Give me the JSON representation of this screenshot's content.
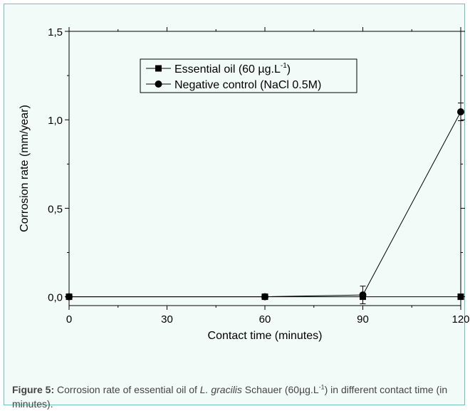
{
  "chart_data": {
    "type": "line",
    "xlabel": "Contact time (minutes)",
    "ylabel": "Corrosion rate (mm/year)",
    "x_ticks": [
      "0",
      "30",
      "60",
      "90",
      "120"
    ],
    "y_ticks": [
      "0,0",
      "0,5",
      "1,0",
      "1,5"
    ],
    "xlim": [
      0,
      120
    ],
    "ylim": [
      -0.05,
      1.5
    ],
    "grid": false,
    "legend_position": "top-center",
    "series": [
      {
        "name": "Essential oil (60 µg.L⁻¹)",
        "legend_main": "Essential oil (60 µg.L",
        "legend_sup": "-1",
        "legend_end": ")",
        "marker": "square",
        "color": "#000000",
        "x": [
          0,
          60,
          90,
          120
        ],
        "y": [
          0.0,
          0.0,
          0.0,
          0.0
        ],
        "error": [
          0,
          0,
          0,
          0
        ]
      },
      {
        "name": "Negative control (NaCl 0.5M)",
        "legend_main": "Negative control (NaCl 0.5M)",
        "legend_sup": "",
        "legend_end": "",
        "marker": "circle",
        "color": "#000000",
        "x": [
          0,
          60,
          90,
          120
        ],
        "y": [
          0.0,
          0.0,
          0.01,
          1.045
        ],
        "error": [
          0,
          0,
          0.05,
          0.05
        ]
      }
    ]
  },
  "caption": {
    "label": "Figure 5:",
    "text_before": " Corrosion rate of essential oil of ",
    "species": "L. gracilis",
    "text_middle": " Schauer (60µg.L",
    "sup": "-1",
    "text_after": ") in different contact time (in minutes)."
  }
}
